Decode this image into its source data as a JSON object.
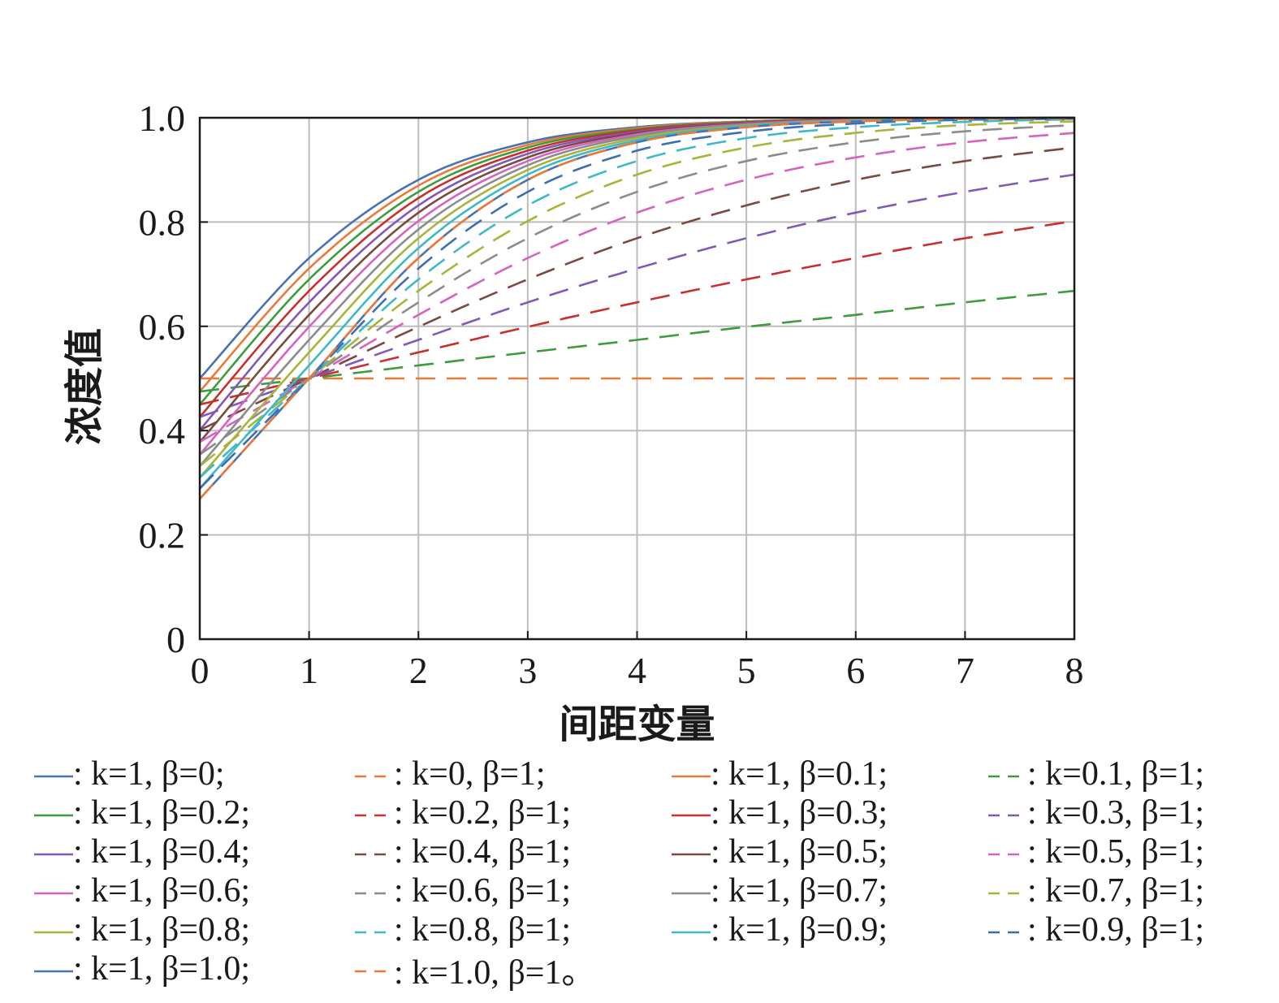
{
  "chart_data": {
    "type": "line",
    "title": "",
    "xlabel": "间距变量",
    "ylabel": "浓度值",
    "xlim": [
      0,
      8
    ],
    "ylim": [
      0,
      1.0
    ],
    "xticks": [
      "0",
      "1",
      "2",
      "3",
      "4",
      "5",
      "6",
      "7",
      "8"
    ],
    "yticks": [
      "0",
      "0.2",
      "0.4",
      "0.6",
      "0.8",
      "1.0"
    ],
    "grid": true,
    "legend_position": "bottom",
    "x": [
      0,
      1,
      2,
      3,
      4,
      5,
      6,
      7,
      8
    ],
    "series": [
      {
        "name": ": k=1, β=0;",
        "style": "solid",
        "color": "#4a72b0",
        "values": [
          0.5,
          0.731,
          0.881,
          0.953,
          0.982,
          0.993,
          0.998,
          0.999,
          1.0
        ]
      },
      {
        "name": ": k=0, β=1;",
        "style": "dashed",
        "color": "#ea7a3a",
        "values": [
          0.5,
          0.5,
          0.5,
          0.5,
          0.5,
          0.5,
          0.5,
          0.5,
          0.5
        ]
      },
      {
        "name": ": k=1, β=0.1;",
        "style": "solid",
        "color": "#ea7a3a",
        "values": [
          0.475,
          0.711,
          0.87,
          0.948,
          0.98,
          0.993,
          0.997,
          0.999,
          1.0
        ]
      },
      {
        "name": ": k=0.1, β=1;",
        "style": "dashed",
        "color": "#3d9c3d",
        "values": [
          0.475,
          0.5,
          0.525,
          0.55,
          0.574,
          0.599,
          0.622,
          0.646,
          0.668
        ]
      },
      {
        "name": ": k=1, β=0.2;",
        "style": "solid",
        "color": "#3d9c3d",
        "values": [
          0.45,
          0.69,
          0.858,
          0.943,
          0.978,
          0.992,
          0.997,
          0.999,
          1.0
        ]
      },
      {
        "name": ": k=0.2, β=1;",
        "style": "dashed",
        "color": "#c7302e",
        "values": [
          0.45,
          0.5,
          0.55,
          0.599,
          0.646,
          0.69,
          0.731,
          0.769,
          0.802
        ]
      },
      {
        "name": ": k=1, β=0.3;",
        "style": "solid",
        "color": "#c7302e",
        "values": [
          0.426,
          0.668,
          0.846,
          0.937,
          0.976,
          0.991,
          0.997,
          0.999,
          1.0
        ]
      },
      {
        "name": ": k=0.3, β=1;",
        "style": "dashed",
        "color": "#8358b8",
        "values": [
          0.426,
          0.5,
          0.574,
          0.646,
          0.711,
          0.769,
          0.818,
          0.858,
          0.891
        ]
      },
      {
        "name": ": k=1, β=0.4;",
        "style": "solid",
        "color": "#8358b8",
        "values": [
          0.401,
          0.646,
          0.832,
          0.931,
          0.973,
          0.99,
          0.996,
          0.999,
          1.0
        ]
      },
      {
        "name": ": k=0.4, β=1;",
        "style": "dashed",
        "color": "#7a4a40",
        "values": [
          0.401,
          0.5,
          0.599,
          0.69,
          0.769,
          0.832,
          0.881,
          0.917,
          0.943
        ]
      },
      {
        "name": ": k=1, β=0.5;",
        "style": "solid",
        "color": "#7a4a40",
        "values": [
          0.378,
          0.622,
          0.818,
          0.924,
          0.971,
          0.989,
          0.996,
          0.999,
          1.0
        ]
      },
      {
        "name": ": k=0.5, β=1;",
        "style": "dashed",
        "color": "#d563c0",
        "values": [
          0.378,
          0.5,
          0.622,
          0.731,
          0.818,
          0.881,
          0.924,
          0.953,
          0.971
        ]
      },
      {
        "name": ": k=1, β=0.6;",
        "style": "solid",
        "color": "#d563c0",
        "values": [
          0.354,
          0.599,
          0.802,
          0.917,
          0.968,
          0.988,
          0.996,
          0.998,
          0.999
        ]
      },
      {
        "name": ": k=0.6, β=1;",
        "style": "dashed",
        "color": "#8c8c8c",
        "values": [
          0.354,
          0.5,
          0.646,
          0.769,
          0.858,
          0.917,
          0.953,
          0.974,
          0.986
        ]
      },
      {
        "name": ": k=1, β=0.7;",
        "style": "solid",
        "color": "#8c8c8c",
        "values": [
          0.332,
          0.574,
          0.786,
          0.909,
          0.965,
          0.987,
          0.995,
          0.998,
          0.999
        ]
      },
      {
        "name": ": k=0.7, β=1;",
        "style": "dashed",
        "color": "#a8b43a",
        "values": [
          0.332,
          0.5,
          0.668,
          0.802,
          0.891,
          0.943,
          0.971,
          0.986,
          0.993
        ]
      },
      {
        "name": ": k=1, β=0.8;",
        "style": "solid",
        "color": "#a8b43a",
        "values": [
          0.31,
          0.55,
          0.769,
          0.9,
          0.961,
          0.985,
          0.995,
          0.998,
          0.999
        ]
      },
      {
        "name": ": k=0.8, β=1;",
        "style": "dashed",
        "color": "#3fb8c8",
        "values": [
          0.31,
          0.5,
          0.69,
          0.832,
          0.917,
          0.961,
          0.982,
          0.992,
          0.997
        ]
      },
      {
        "name": ": k=1, β=0.9;",
        "style": "solid",
        "color": "#3fb8c8",
        "values": [
          0.289,
          0.525,
          0.75,
          0.891,
          0.957,
          0.984,
          0.994,
          0.998,
          0.999
        ]
      },
      {
        "name": ": k=0.9, β=1;",
        "style": "dashed",
        "color": "#3d6fb0",
        "values": [
          0.289,
          0.5,
          0.711,
          0.858,
          0.937,
          0.973,
          0.989,
          0.996,
          0.998
        ]
      },
      {
        "name": ": k=1, β=1.0;",
        "style": "solid",
        "color": "#4a72b0",
        "values": [
          0.269,
          0.5,
          0.731,
          0.881,
          0.953,
          0.982,
          0.993,
          0.998,
          0.999
        ]
      },
      {
        "name": ": k=1.0, β=1。",
        "style": "dashed",
        "color": "#ea7a3a",
        "values": [
          0.269,
          0.5,
          0.731,
          0.881,
          0.953,
          0.982,
          0.993,
          0.998,
          0.999
        ]
      }
    ]
  }
}
